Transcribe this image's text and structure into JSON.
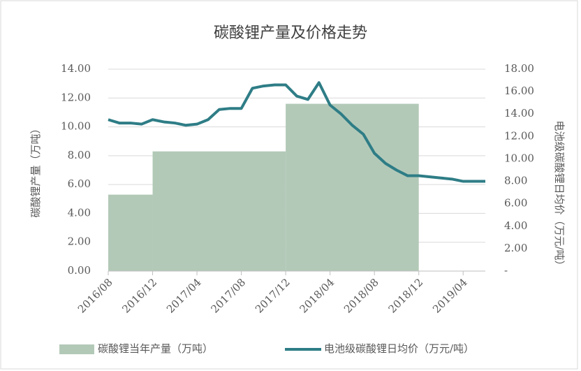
{
  "chart_data": {
    "type": "area-line",
    "title": "碳酸锂产量及价格走势",
    "y_label": "碳酸锂产量（万吨）",
    "y2_label": "电池级碳酸锂日均价（万元/吨）",
    "xlim": [
      "2016/08",
      "2019/06"
    ],
    "xticks": [
      "2016/08",
      "2016/12",
      "2017/04",
      "2017/08",
      "2017/12",
      "2018/04",
      "2018/08",
      "2018/12",
      "2019/04"
    ],
    "ylim": [
      0,
      14
    ],
    "yticks": [
      {
        "value": 0,
        "label": "0.00"
      },
      {
        "value": 2,
        "label": "2.00"
      },
      {
        "value": 4,
        "label": "4.00"
      },
      {
        "value": 6,
        "label": "6.00"
      },
      {
        "value": 8,
        "label": "8.00"
      },
      {
        "value": 10,
        "label": "10.00"
      },
      {
        "value": 12,
        "label": "12.00"
      },
      {
        "value": 14,
        "label": "14.00"
      }
    ],
    "y2lim": [
      0,
      18
    ],
    "y2ticks": [
      {
        "value": 0,
        "label": "-"
      },
      {
        "value": 2,
        "label": "2.00"
      },
      {
        "value": 4,
        "label": "4.00"
      },
      {
        "value": 6,
        "label": "6.00"
      },
      {
        "value": 8,
        "label": "8.00"
      },
      {
        "value": 10,
        "label": "10.00"
      },
      {
        "value": 12,
        "label": "12.00"
      },
      {
        "value": 14,
        "label": "14.00"
      },
      {
        "value": 16,
        "label": "16.00"
      },
      {
        "value": 18,
        "label": "18.00"
      }
    ],
    "grid": true,
    "legend": "bottom",
    "series": [
      {
        "name": "碳酸锂当年产量（万吨）",
        "color": "#b3c9b8",
        "kind": "step-area",
        "x": [
          "2016/08",
          "2016/12",
          "2017/12",
          "2018/12"
        ],
        "values": [
          5.3,
          8.3,
          11.6,
          11.6
        ]
      },
      {
        "name": "电池级碳酸锂日均价（万元/吨）",
        "color": "#2e7d86",
        "kind": "line",
        "axis": "y2",
        "x": [
          "2016/08",
          "2016/09",
          "2016/10",
          "2016/11",
          "2016/12",
          "2017/01",
          "2017/02",
          "2017/03",
          "2017/04",
          "2017/05",
          "2017/06",
          "2017/07",
          "2017/08",
          "2017/09",
          "2017/10",
          "2017/11",
          "2017/12",
          "2018/01",
          "2018/02",
          "2018/03",
          "2018/04",
          "2018/05",
          "2018/06",
          "2018/07",
          "2018/08",
          "2018/09",
          "2018/10",
          "2018/11",
          "2018/12",
          "2019/01",
          "2019/02",
          "2019/03",
          "2019/04",
          "2019/05",
          "2019/06"
        ],
        "values": [
          13.5,
          13.2,
          13.2,
          13.1,
          13.5,
          13.3,
          13.2,
          13.0,
          13.1,
          13.5,
          14.4,
          14.5,
          14.5,
          16.3,
          16.5,
          16.6,
          16.6,
          15.6,
          15.3,
          16.8,
          14.8,
          14.0,
          13.0,
          12.2,
          10.5,
          9.6,
          9.0,
          8.5,
          8.5,
          8.4,
          8.3,
          8.2,
          8.0,
          8.0,
          8.0
        ]
      }
    ]
  }
}
